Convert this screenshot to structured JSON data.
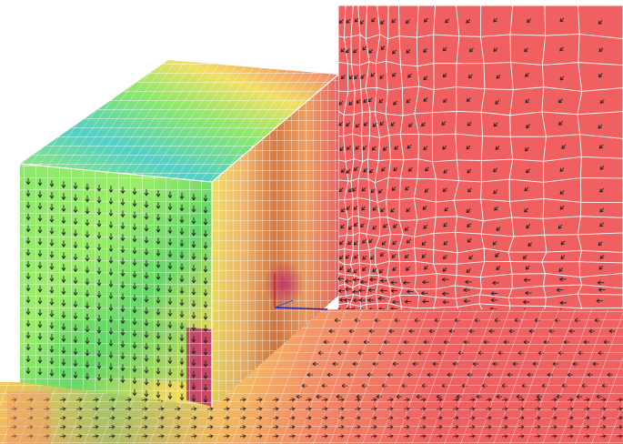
{
  "scene": {
    "description_kind": "3d-fem-mesh-vector-field",
    "colors": {
      "background": "#ffffff",
      "hot": "#f06060",
      "warm": "#f59a6a",
      "mid": "#f3e060",
      "cool": "#8be86a",
      "cold": "#4fd0c8",
      "magenta": "#c0306a",
      "mesh_lines": "#ffffff",
      "vectors": "#222222",
      "axis_x": "#2020c0",
      "axis_y": "#c02020"
    },
    "icons": [
      "mesh-grid",
      "vector-arrows",
      "axis-triad"
    ]
  }
}
